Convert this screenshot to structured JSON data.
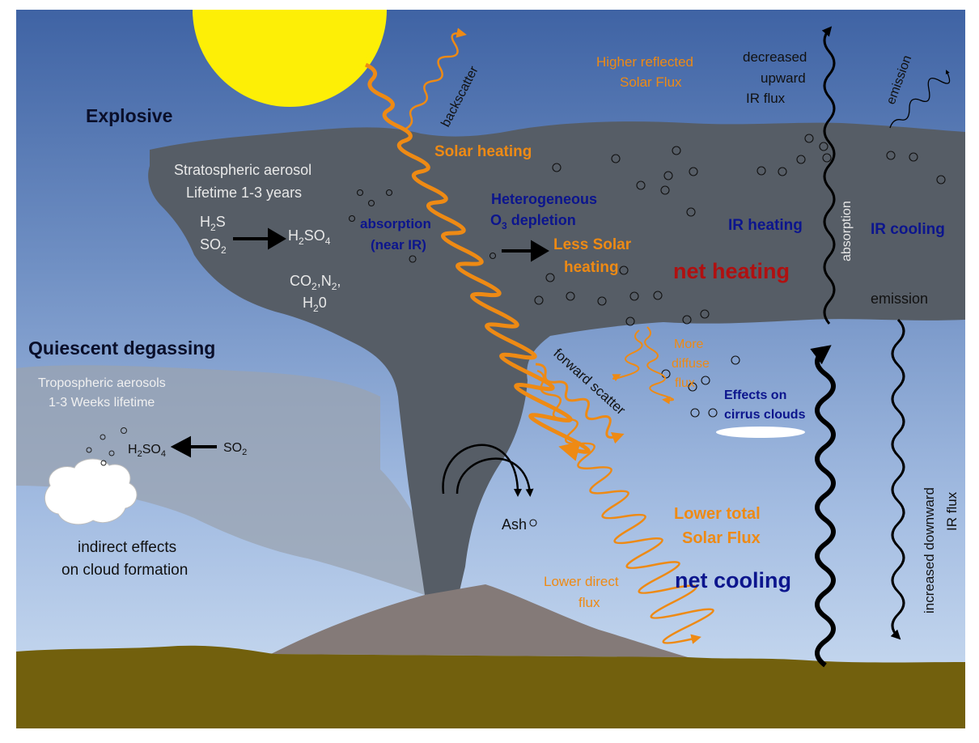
{
  "colors": {
    "sky_top": "#3f63a4",
    "sky_bottom": "#c9dcf1",
    "plume": "#565d66",
    "trop_haze": "#9aa3b0",
    "volcano": "#847a78",
    "ground": "#72600d",
    "sun": "#fdef06",
    "orange": "#ee8a14",
    "navy": "#0c158d",
    "red": "#b01010"
  },
  "labels": {
    "explosive": "Explosive",
    "quiescent": "Quiescent degassing",
    "strat_line1": "Stratospheric aerosol",
    "strat_line2": "Lifetime 1-3  years",
    "trop_line1": "Tropospheric aerosols",
    "trop_line2": "1-3 Weeks lifetime",
    "h2s": "H",
    "h2s_sub": "2",
    "h2s_end": "S",
    "so2": "SO",
    "so2_sub": "2",
    "h2so4": "H",
    "h2so4_sub1": "2",
    "h2so4_mid": "SO",
    "h2so4_sub2": "4",
    "co2": "CO",
    "co2_sub": "2",
    "n2": ",N",
    "n2_sub": "2",
    "n2_end": ",",
    "h20": "H",
    "h20_sub": "2",
    "h20_end": "0",
    "trop_h2so4": "H",
    "trop_h2so4_sub1": "2",
    "trop_h2so4_mid": "SO",
    "trop_h2so4_sub2": "4",
    "trop_so2": "SO",
    "trop_so2_sub": "2",
    "indirect_line1": "indirect effects",
    "indirect_line2": "on cloud formation",
    "backscatter": "backscatter",
    "higher_reflected_line1": "Higher reflected",
    "higher_reflected_line2": "Solar Flux",
    "decreased_line1": "decreased",
    "decreased_line2": "upward",
    "decreased_line3": "IR flux",
    "emission_top": "emission",
    "solar_heating": "Solar heating",
    "hetero_line1": "Heterogeneous",
    "hetero_line2_a": "O",
    "hetero_line2_sub": "3",
    "hetero_line2_b": " depletion",
    "absorption_near_ir_line1": "absorption",
    "absorption_near_ir_line2": "(near IR)",
    "less_solar_line1": "Less Solar",
    "less_solar_line2": "heating",
    "ir_heating": "IR heating",
    "ir_cooling": "IR cooling",
    "absorption_vertical": "absorption",
    "net_heating": "net heating",
    "emission_mid": "emission",
    "more_diffuse_line1": "More",
    "more_diffuse_line2": "diffuse",
    "more_diffuse_line3": "flux",
    "forward_scatter": "forward scatter",
    "effects_cirrus_line1": "Effects on",
    "effects_cirrus_line2": "cirrus clouds",
    "ash": "Ash",
    "lower_total_line1": "Lower total",
    "lower_total_line2": "Solar Flux",
    "lower_direct_line1": "Lower direct",
    "lower_direct_line2": "flux",
    "net_cooling": "net cooling",
    "increased_downward_line1": "increased downward",
    "increased_downward_line2": "IR flux"
  }
}
